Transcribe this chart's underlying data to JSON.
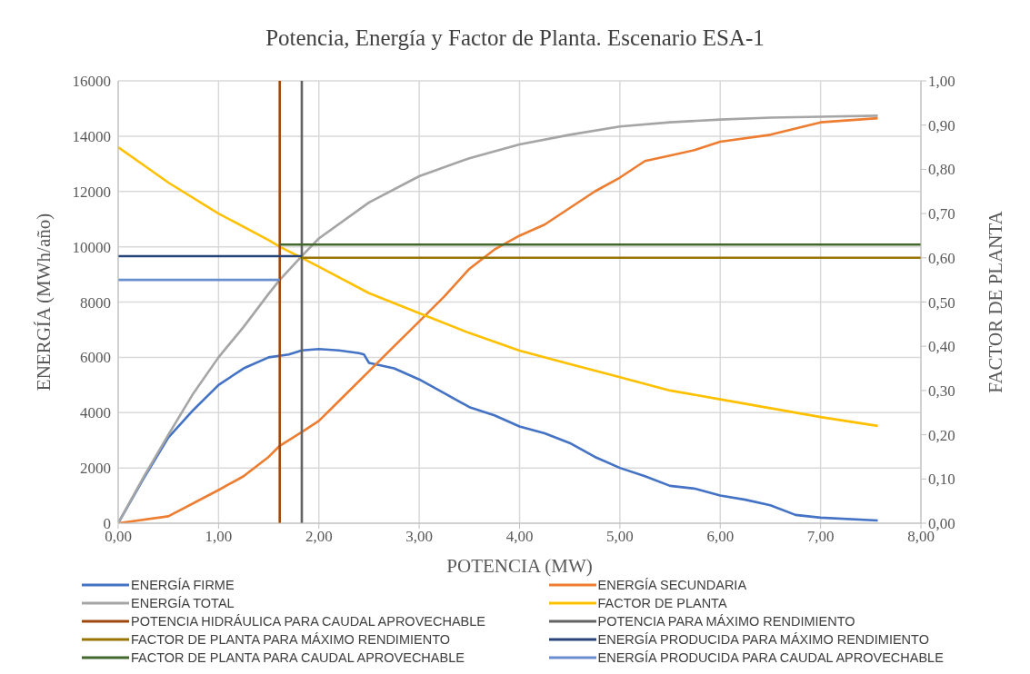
{
  "chart_data": {
    "type": "line",
    "title": "Potencia, Energía y Factor de Planta. Escenario ESA-1",
    "xlabel": "POTENCIA (MW)",
    "ylabel": "ENERGÍA (MWh/año)",
    "y2label": "FACTOR DE PLANTA",
    "xlim": [
      0,
      8
    ],
    "xticks": [
      {
        "value": 0,
        "label": "0,00"
      },
      {
        "value": 1,
        "label": "1,00"
      },
      {
        "value": 2,
        "label": "2,00"
      },
      {
        "value": 3,
        "label": "3,00"
      },
      {
        "value": 4,
        "label": "4,00"
      },
      {
        "value": 5,
        "label": "5,00"
      },
      {
        "value": 6,
        "label": "6,00"
      },
      {
        "value": 7,
        "label": "7,00"
      },
      {
        "value": 8,
        "label": "8,00"
      }
    ],
    "ylim": [
      0,
      16000
    ],
    "yticks": [
      0,
      2000,
      4000,
      6000,
      8000,
      10000,
      12000,
      14000,
      16000
    ],
    "y2lim": [
      0,
      1
    ],
    "y2ticks": [
      {
        "value": 0,
        "label": "0,00"
      },
      {
        "value": 0.1,
        "label": "0,10"
      },
      {
        "value": 0.2,
        "label": "0,20"
      },
      {
        "value": 0.3,
        "label": "0,30"
      },
      {
        "value": 0.4,
        "label": "0,40"
      },
      {
        "value": 0.5,
        "label": "0,50"
      },
      {
        "value": 0.6,
        "label": "0,60"
      },
      {
        "value": 0.7,
        "label": "0,70"
      },
      {
        "value": 0.8,
        "label": "0,80"
      },
      {
        "value": 0.9,
        "label": "0,90"
      },
      {
        "value": 1,
        "label": "1,00"
      }
    ],
    "grid": true,
    "legend": "bottom",
    "marker": "none",
    "line_style": "solid",
    "series": [
      {
        "name": "ENERGÍA FIRME",
        "color": "#4472c4",
        "x": [
          0,
          0.25,
          0.5,
          0.75,
          1,
          1.25,
          1.5,
          1.7,
          1.83,
          2,
          2.2,
          2.4,
          2.45,
          2.5,
          2.75,
          3,
          3.25,
          3.5,
          3.75,
          4,
          4.25,
          4.5,
          4.75,
          5,
          5.25,
          5.5,
          5.75,
          6,
          6.25,
          6.5,
          6.75,
          7,
          7.57
        ],
        "values": [
          0,
          1600,
          3100,
          4100,
          5000,
          5600,
          6000,
          6100,
          6250,
          6300,
          6250,
          6150,
          6100,
          5800,
          5600,
          5200,
          4700,
          4200,
          3900,
          3500,
          3250,
          2900,
          2400,
          2000,
          1700,
          1350,
          1250,
          1000,
          850,
          650,
          300,
          200,
          100
        ]
      },
      {
        "name": "ENERGÍA SECUNDARIA",
        "color": "#ed7d31",
        "x": [
          0,
          0.5,
          1,
          1.25,
          1.5,
          1.61,
          1.83,
          2,
          2.25,
          2.5,
          2.75,
          3,
          3.25,
          3.5,
          3.75,
          4,
          4.25,
          4.5,
          4.75,
          5,
          5.25,
          5.5,
          5.75,
          6,
          6.5,
          7,
          7.57
        ],
        "values": [
          0,
          250,
          1200,
          1700,
          2400,
          2800,
          3300,
          3700,
          4600,
          5500,
          6400,
          7300,
          8200,
          9200,
          9900,
          10400,
          10800,
          11400,
          12000,
          12500,
          13100,
          13300,
          13500,
          13800,
          14050,
          14500,
          14650
        ]
      },
      {
        "name": "ENERGÍA TOTAL",
        "color": "#a5a5a5",
        "x": [
          0,
          0.25,
          0.5,
          0.75,
          1,
          1.25,
          1.5,
          1.61,
          1.83,
          2,
          2.5,
          3,
          3.5,
          4,
          4.5,
          5,
          5.5,
          6,
          6.5,
          7,
          7.57
        ],
        "values": [
          0,
          1650,
          3200,
          4700,
          6000,
          7100,
          8300,
          8800,
          9660,
          10300,
          11600,
          12550,
          13200,
          13700,
          14050,
          14350,
          14500,
          14600,
          14670,
          14700,
          14740
        ]
      },
      {
        "name": "FACTOR DE PLANTA",
        "color": "#ffc000",
        "axis": "y2",
        "x": [
          0,
          0.25,
          0.5,
          1,
          1.5,
          1.61,
          1.83,
          2,
          2.5,
          3,
          3.5,
          4,
          4.5,
          5,
          5.5,
          6,
          6.5,
          7,
          7.57
        ],
        "values": [
          0.85,
          0.81,
          0.77,
          0.7,
          0.64,
          0.625,
          0.6,
          0.58,
          0.52,
          0.475,
          0.43,
          0.39,
          0.36,
          0.33,
          0.3,
          0.28,
          0.26,
          0.24,
          0.22
        ]
      },
      {
        "name": "POTENCIA HIDRÁULICA PARA CAUDAL APROVECHABLE",
        "color": "#9e480e",
        "x": [
          1.61,
          1.61
        ],
        "values": [
          0,
          16000
        ]
      },
      {
        "name": "POTENCIA PARA MÁXIMO RENDIMIENTO",
        "color": "#636363",
        "x": [
          1.83,
          1.83
        ],
        "values": [
          0,
          16000
        ]
      },
      {
        "name": "FACTOR DE PLANTA PARA MÁXIMO RENDIMIENTO",
        "color": "#997300",
        "axis": "y2",
        "x": [
          1.83,
          8
        ],
        "values": [
          0.6,
          0.6
        ]
      },
      {
        "name": "ENERGÍA PRODUCIDA PARA MÁXIMO RENDIMIENTO",
        "color": "#264478",
        "x": [
          0,
          1.83
        ],
        "values": [
          9660,
          9660
        ]
      },
      {
        "name": "FACTOR DE PLANTA PARA CAUDAL APROVECHABLE",
        "color": "#43682b",
        "axis": "y2",
        "x": [
          1.61,
          8
        ],
        "values": [
          0.63,
          0.63
        ]
      },
      {
        "name": "ENERGÍA PRODUCIDA PARA CAUDAL APROVECHABLE",
        "color": "#698ed0",
        "x": [
          0,
          1.61
        ],
        "values": [
          8800,
          8800
        ]
      }
    ]
  }
}
